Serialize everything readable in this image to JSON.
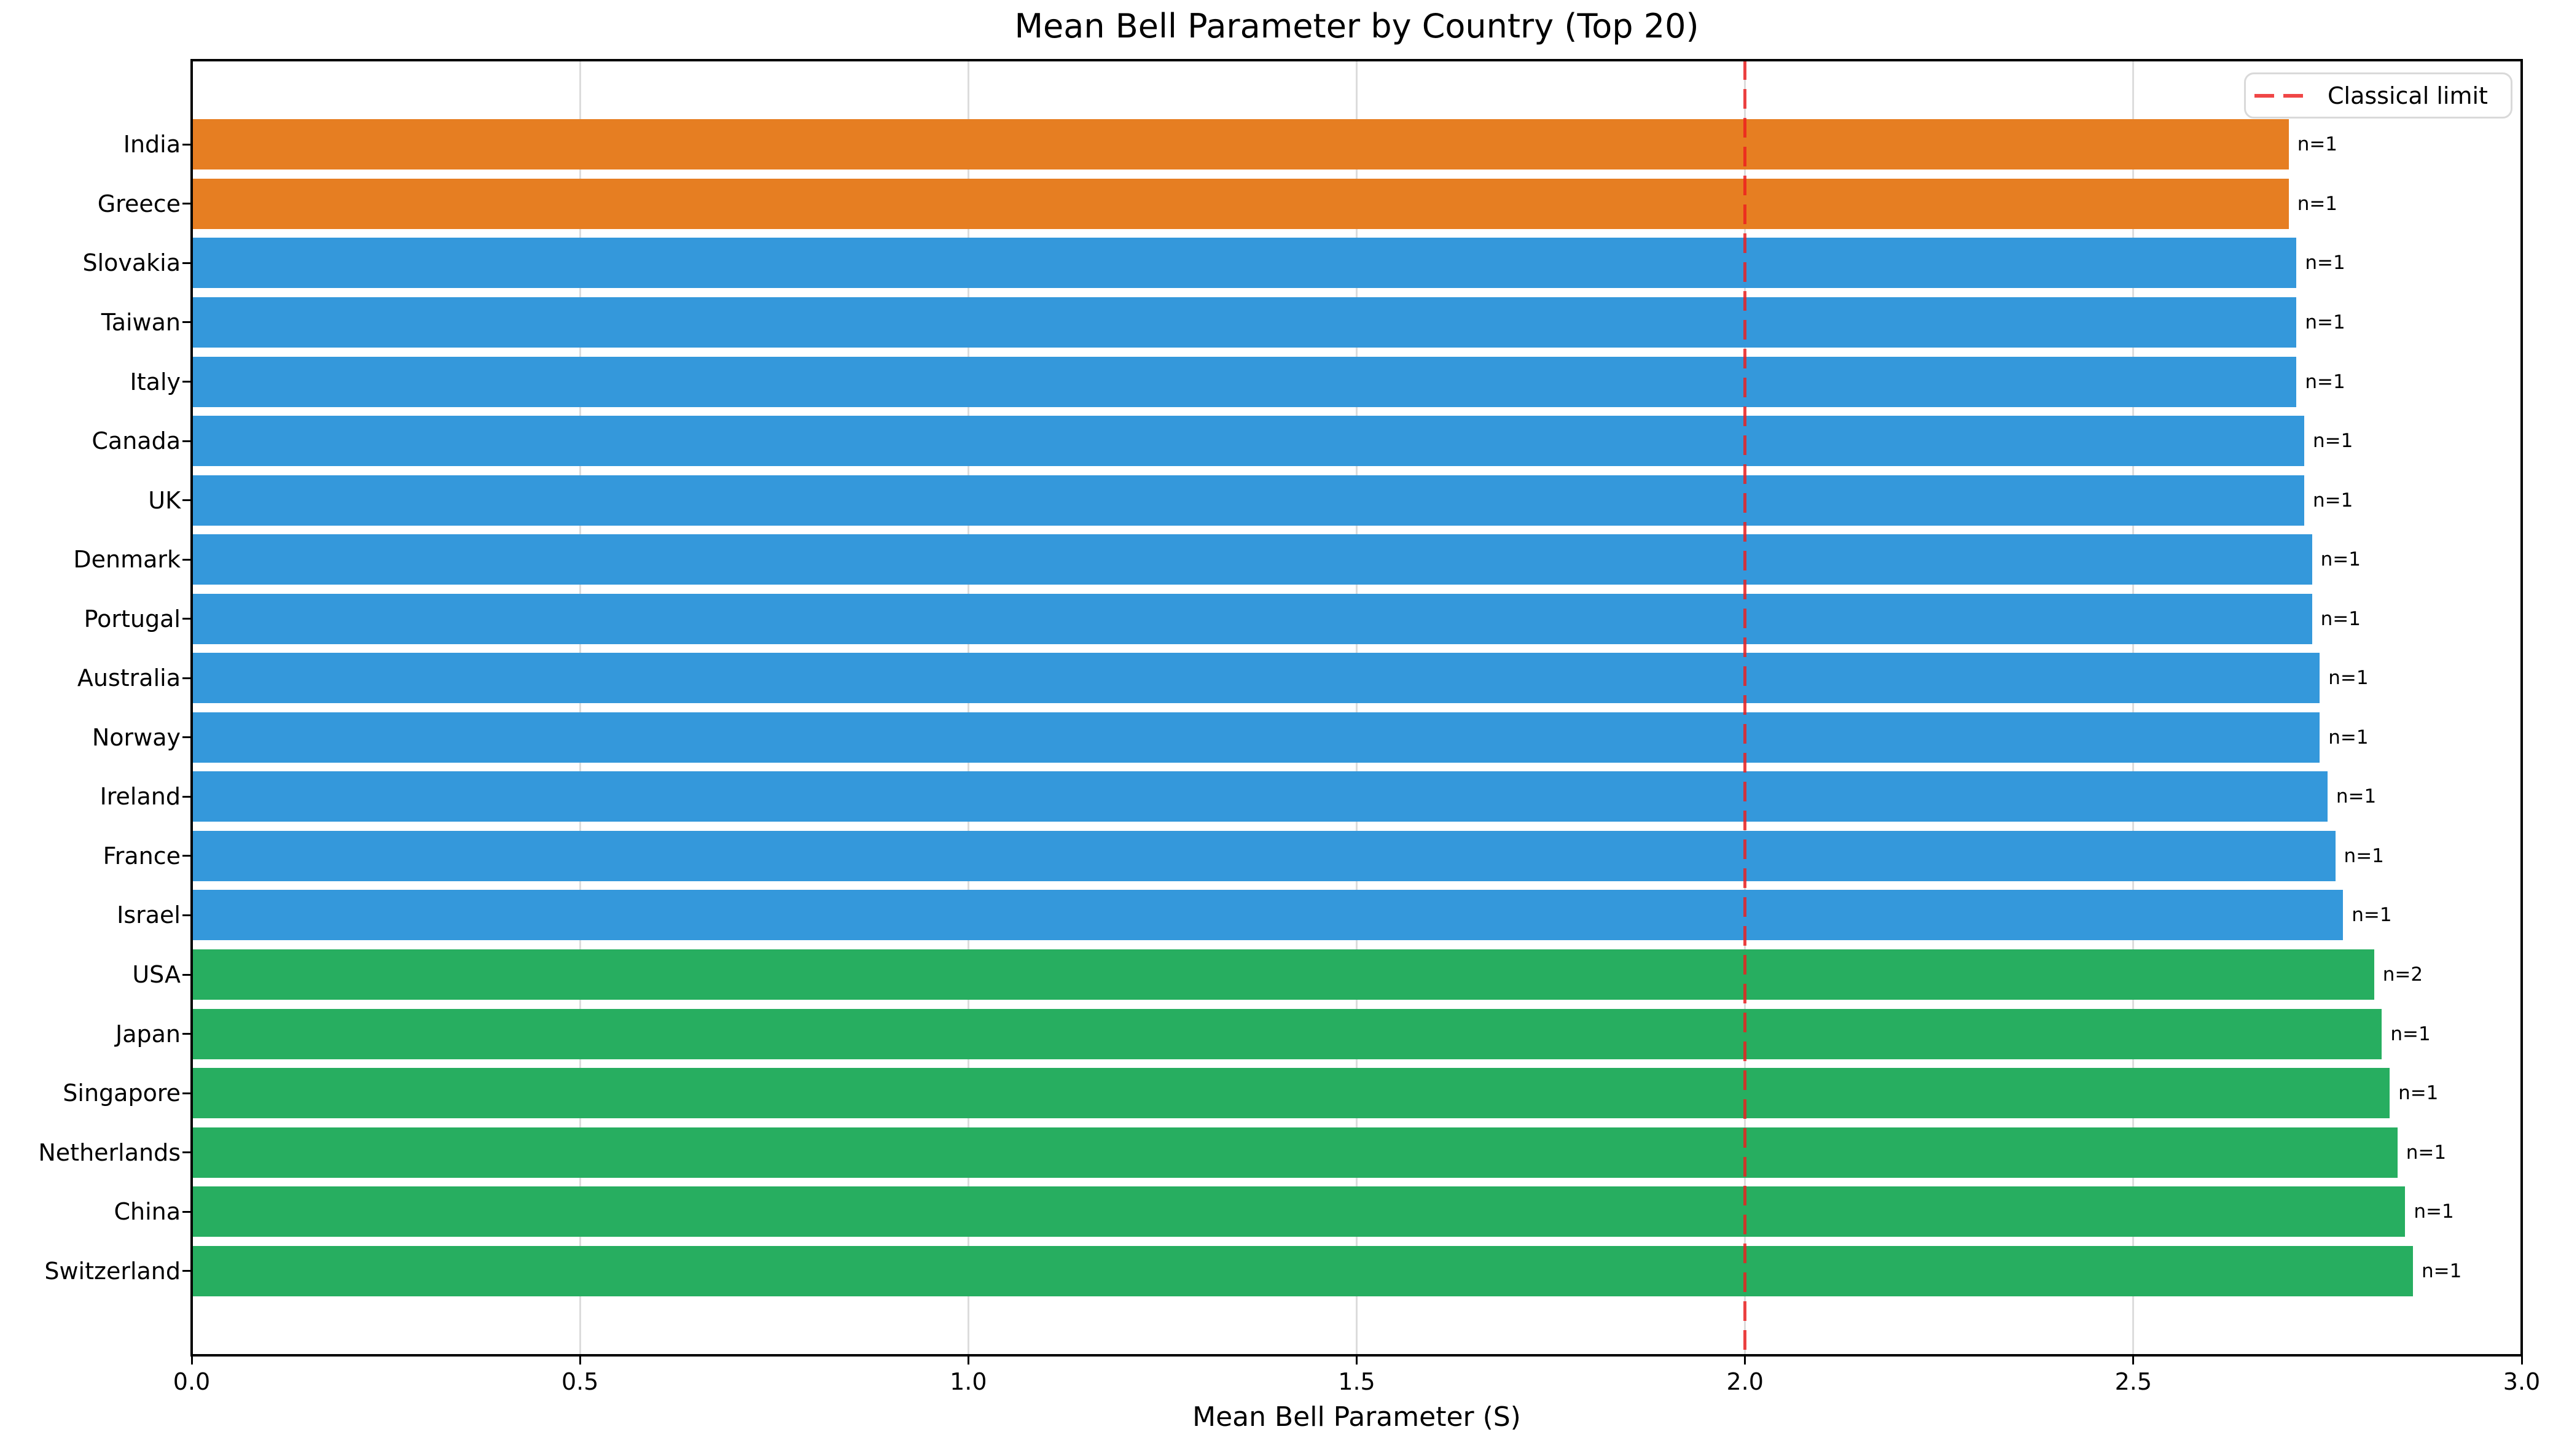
{
  "title": "Mean Bell Parameter by Country (Top 20)",
  "x_axis": {
    "label": "Mean Bell Parameter (S)",
    "ticks": [
      "0.0",
      "0.5",
      "1.0",
      "1.5",
      "2.0",
      "2.5",
      "3.0"
    ],
    "min": 0.0,
    "max": 3.0
  },
  "legend": {
    "classical_limit_label": "Classical limit"
  },
  "colors": {
    "orange_bar": "#e67e22",
    "blue_bar": "#3498db",
    "green_bar": "#27ae60",
    "reference_line_red": "#ed1e1e",
    "gridline": "#dcdcdc",
    "spine": "#000000",
    "background": "#ffffff"
  },
  "chart_data": {
    "type": "bar",
    "orientation": "horizontal",
    "title": "Mean Bell Parameter by Country (Top 20)",
    "xlabel": "Mean Bell Parameter (S)",
    "xlim": [
      0.0,
      3.0
    ],
    "grid": "vertical lines at 0.5 intervals, light gray, behind bars",
    "legend_position": "upper right",
    "reference_line": {
      "x": 2.0,
      "style": "dashed",
      "color": "red",
      "label": "Classical limit"
    },
    "categories_top_to_bottom": [
      "India",
      "Greece",
      "Slovakia",
      "Taiwan",
      "Italy",
      "Canada",
      "UK",
      "Denmark",
      "Portugal",
      "Australia",
      "Norway",
      "Ireland",
      "France",
      "Israel",
      "USA",
      "Japan",
      "Singapore",
      "Netherlands",
      "China",
      "Switzerland"
    ],
    "bars": [
      {
        "country": "India",
        "value": 2.7,
        "n": 1,
        "n_label": "n=1",
        "color": "#e67e22"
      },
      {
        "country": "Greece",
        "value": 2.7,
        "n": 1,
        "n_label": "n=1",
        "color": "#e67e22"
      },
      {
        "country": "Slovakia",
        "value": 2.71,
        "n": 1,
        "n_label": "n=1",
        "color": "#3498db"
      },
      {
        "country": "Taiwan",
        "value": 2.71,
        "n": 1,
        "n_label": "n=1",
        "color": "#3498db"
      },
      {
        "country": "Italy",
        "value": 2.71,
        "n": 1,
        "n_label": "n=1",
        "color": "#3498db"
      },
      {
        "country": "Canada",
        "value": 2.72,
        "n": 1,
        "n_label": "n=1",
        "color": "#3498db"
      },
      {
        "country": "UK",
        "value": 2.72,
        "n": 1,
        "n_label": "n=1",
        "color": "#3498db"
      },
      {
        "country": "Denmark",
        "value": 2.73,
        "n": 1,
        "n_label": "n=1",
        "color": "#3498db"
      },
      {
        "country": "Portugal",
        "value": 2.73,
        "n": 1,
        "n_label": "n=1",
        "color": "#3498db"
      },
      {
        "country": "Australia",
        "value": 2.74,
        "n": 1,
        "n_label": "n=1",
        "color": "#3498db"
      },
      {
        "country": "Norway",
        "value": 2.74,
        "n": 1,
        "n_label": "n=1",
        "color": "#3498db"
      },
      {
        "country": "Ireland",
        "value": 2.75,
        "n": 1,
        "n_label": "n=1",
        "color": "#3498db"
      },
      {
        "country": "France",
        "value": 2.76,
        "n": 1,
        "n_label": "n=1",
        "color": "#3498db"
      },
      {
        "country": "Israel",
        "value": 2.77,
        "n": 1,
        "n_label": "n=1",
        "color": "#3498db"
      },
      {
        "country": "USA",
        "value": 2.81,
        "n": 2,
        "n_label": "n=2",
        "color": "#27ae60"
      },
      {
        "country": "Japan",
        "value": 2.82,
        "n": 1,
        "n_label": "n=1",
        "color": "#27ae60"
      },
      {
        "country": "Singapore",
        "value": 2.83,
        "n": 1,
        "n_label": "n=1",
        "color": "#27ae60"
      },
      {
        "country": "Netherlands",
        "value": 2.84,
        "n": 1,
        "n_label": "n=1",
        "color": "#27ae60"
      },
      {
        "country": "China",
        "value": 2.85,
        "n": 1,
        "n_label": "n=1",
        "color": "#27ae60"
      },
      {
        "country": "Switzerland",
        "value": 2.86,
        "n": 1,
        "n_label": "n=1",
        "color": "#27ae60"
      }
    ]
  }
}
